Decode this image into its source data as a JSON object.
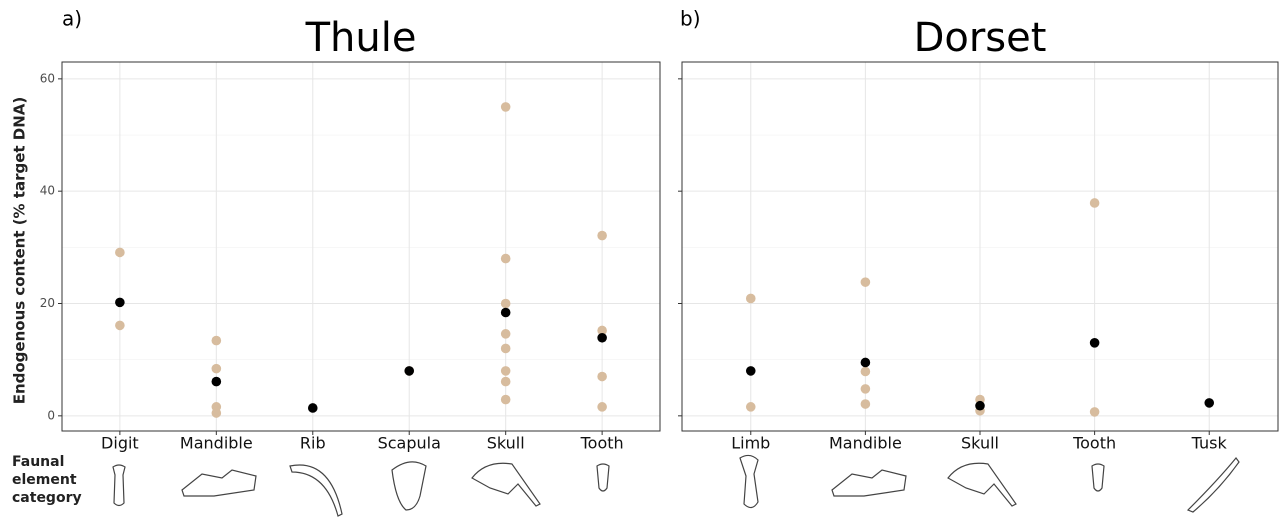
{
  "chart_data": [
    {
      "type": "scatter",
      "panel_label": "a)",
      "title": "Thule",
      "y_label": "Endogenous content (% target DNA)",
      "categories": [
        "Digit",
        "Mandible",
        "Rib",
        "Scapula",
        "Skull",
        "Tooth"
      ],
      "ylim": [
        -2.7,
        63
      ],
      "yticks": [
        0,
        20,
        40,
        60
      ],
      "y_minor_ticks": [
        10,
        30,
        50
      ],
      "show_y_tick_labels": true,
      "grid": true,
      "series": [
        {
          "color": "#d7bc9e",
          "x": [
            "Digit",
            "Digit",
            "Mandible",
            "Mandible",
            "Mandible",
            "Mandible",
            "Scapula",
            "Skull",
            "Skull",
            "Skull",
            "Skull",
            "Skull",
            "Skull",
            "Skull",
            "Skull",
            "Tooth",
            "Tooth",
            "Tooth",
            "Tooth"
          ],
          "y": [
            29.1,
            16.1,
            13.4,
            8.4,
            1.6,
            0.5,
            8.0,
            55,
            28,
            20,
            14.6,
            12,
            8,
            6.1,
            2.9,
            32.1,
            15.2,
            7.0,
            1.6
          ]
        },
        {
          "color": "#000000",
          "x": [
            "Digit",
            "Mandible",
            "Rib",
            "Scapula",
            "Skull",
            "Tooth"
          ],
          "y": [
            20.2,
            6.1,
            1.4,
            8.0,
            18.4,
            13.9
          ]
        }
      ]
    },
    {
      "type": "scatter",
      "panel_label": "b)",
      "title": "Dorset",
      "categories": [
        "Limb",
        "Mandible",
        "Skull",
        "Tooth",
        "Tusk"
      ],
      "ylim": [
        -2.7,
        63
      ],
      "yticks": [
        0,
        20,
        40,
        60
      ],
      "y_minor_ticks": [
        10,
        30,
        50
      ],
      "show_y_tick_labels": false,
      "grid": true,
      "series": [
        {
          "color": "#d7bc9e",
          "x": [
            "Limb",
            "Limb",
            "Mandible",
            "Mandible",
            "Mandible",
            "Mandible",
            "Skull",
            "Skull",
            "Tooth",
            "Tooth"
          ],
          "y": [
            20.9,
            1.6,
            23.8,
            7.9,
            4.8,
            2.1,
            2.9,
            0.9,
            37.9,
            0.7
          ]
        },
        {
          "color": "#000000",
          "x": [
            "Limb",
            "Mandible",
            "Skull",
            "Tooth",
            "Tusk"
          ],
          "y": [
            8,
            9.5,
            1.8,
            13,
            2.3
          ]
        }
      ]
    }
  ],
  "side_label": [
    "Faunal",
    "element",
    "category"
  ]
}
